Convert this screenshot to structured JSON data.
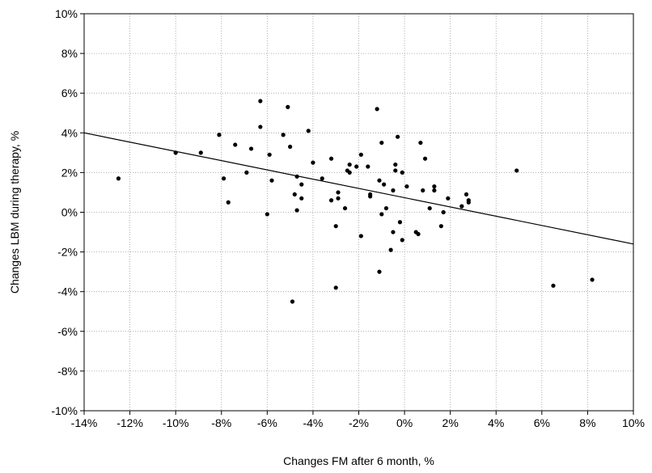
{
  "chart_data": {
    "type": "scatter",
    "title": "",
    "xlabel": "Changes FM after 6 month, %",
    "ylabel": "Changes LBM during therapy, %",
    "xlim": [
      -14,
      10
    ],
    "ylim": [
      -10,
      10
    ],
    "xticks": [
      -14,
      -12,
      -10,
      -8,
      -6,
      -4,
      -2,
      0,
      2,
      4,
      6,
      8,
      10
    ],
    "yticks": [
      -10,
      -8,
      -6,
      -4,
      -2,
      0,
      2,
      4,
      6,
      8,
      10
    ],
    "xtick_labels": [
      "-14%",
      "-12%",
      "-10%",
      "-8%",
      "-6%",
      "-4%",
      "-2%",
      "0%",
      "2%",
      "4%",
      "6%",
      "8%",
      "10%"
    ],
    "ytick_labels": [
      "-10%",
      "-8%",
      "-6%",
      "-4%",
      "-2%",
      "0%",
      "2%",
      "4%",
      "6%",
      "8%",
      "10%"
    ],
    "grid": true,
    "marker_color": "#000000",
    "regression_line": {
      "x": [
        -14,
        10
      ],
      "y": [
        4.0,
        -1.6
      ]
    },
    "points": [
      {
        "x": -12.5,
        "y": 1.7
      },
      {
        "x": -10.0,
        "y": 3.0
      },
      {
        "x": -8.9,
        "y": 3.0
      },
      {
        "x": -8.1,
        "y": 3.9
      },
      {
        "x": -7.9,
        "y": 1.7
      },
      {
        "x": -7.7,
        "y": 0.5
      },
      {
        "x": -7.4,
        "y": 3.4
      },
      {
        "x": -6.9,
        "y": 2.0
      },
      {
        "x": -6.7,
        "y": 3.2
      },
      {
        "x": -6.3,
        "y": 5.6
      },
      {
        "x": -6.3,
        "y": 4.3
      },
      {
        "x": -6.0,
        "y": -0.1
      },
      {
        "x": -5.9,
        "y": 2.9
      },
      {
        "x": -5.8,
        "y": 1.6
      },
      {
        "x": -5.3,
        "y": 3.9
      },
      {
        "x": -5.1,
        "y": 5.3
      },
      {
        "x": -5.0,
        "y": 3.3
      },
      {
        "x": -4.9,
        "y": -4.5
      },
      {
        "x": -4.8,
        "y": 0.9
      },
      {
        "x": -4.7,
        "y": 1.8
      },
      {
        "x": -4.7,
        "y": 0.1
      },
      {
        "x": -4.5,
        "y": 1.4
      },
      {
        "x": -4.5,
        "y": 0.7
      },
      {
        "x": -4.2,
        "y": 4.1
      },
      {
        "x": -4.0,
        "y": 2.5
      },
      {
        "x": -3.6,
        "y": 1.7
      },
      {
        "x": -3.2,
        "y": 2.7
      },
      {
        "x": -3.2,
        "y": 0.6
      },
      {
        "x": -3.0,
        "y": -0.7
      },
      {
        "x": -3.0,
        "y": -3.8
      },
      {
        "x": -2.9,
        "y": 1.0
      },
      {
        "x": -2.9,
        "y": 0.7
      },
      {
        "x": -2.6,
        "y": 0.2
      },
      {
        "x": -2.5,
        "y": 2.1
      },
      {
        "x": -2.4,
        "y": 2.4
      },
      {
        "x": -2.4,
        "y": 2.0
      },
      {
        "x": -2.1,
        "y": 2.3
      },
      {
        "x": -1.9,
        "y": 2.9
      },
      {
        "x": -1.9,
        "y": -1.2
      },
      {
        "x": -1.6,
        "y": 2.3
      },
      {
        "x": -1.5,
        "y": 0.8
      },
      {
        "x": -1.5,
        "y": 0.9
      },
      {
        "x": -1.2,
        "y": 5.2
      },
      {
        "x": -1.1,
        "y": 1.6
      },
      {
        "x": -1.1,
        "y": -3.0
      },
      {
        "x": -1.0,
        "y": 3.5
      },
      {
        "x": -1.0,
        "y": -0.1
      },
      {
        "x": -0.9,
        "y": 1.4
      },
      {
        "x": -0.8,
        "y": 0.2
      },
      {
        "x": -0.6,
        "y": -1.9
      },
      {
        "x": -0.5,
        "y": 1.1
      },
      {
        "x": -0.5,
        "y": -1.0
      },
      {
        "x": -0.4,
        "y": 2.4
      },
      {
        "x": -0.4,
        "y": 2.1
      },
      {
        "x": -0.3,
        "y": 3.8
      },
      {
        "x": -0.2,
        "y": -0.5
      },
      {
        "x": -0.1,
        "y": 2.0
      },
      {
        "x": -0.1,
        "y": -1.4
      },
      {
        "x": 0.1,
        "y": 1.3
      },
      {
        "x": 0.5,
        "y": -1.0
      },
      {
        "x": 0.6,
        "y": -1.1
      },
      {
        "x": 0.7,
        "y": 3.5
      },
      {
        "x": 0.8,
        "y": 1.1
      },
      {
        "x": 0.9,
        "y": 2.7
      },
      {
        "x": 1.1,
        "y": 0.2
      },
      {
        "x": 1.3,
        "y": 1.3
      },
      {
        "x": 1.3,
        "y": 1.1
      },
      {
        "x": 1.6,
        "y": -0.7
      },
      {
        "x": 1.7,
        "y": 0.0
      },
      {
        "x": 1.9,
        "y": 0.7
      },
      {
        "x": 2.5,
        "y": 0.3
      },
      {
        "x": 2.7,
        "y": 0.9
      },
      {
        "x": 2.8,
        "y": 0.6
      },
      {
        "x": 2.8,
        "y": 0.5
      },
      {
        "x": 4.9,
        "y": 2.1
      },
      {
        "x": 6.5,
        "y": -3.7
      },
      {
        "x": 8.2,
        "y": -3.4
      }
    ]
  }
}
